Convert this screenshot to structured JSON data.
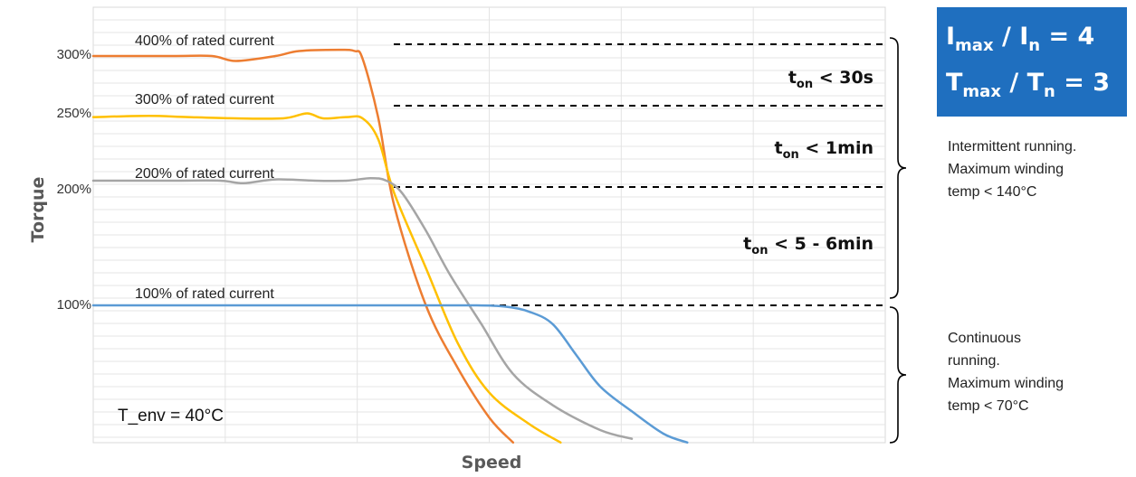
{
  "chart_data": {
    "type": "line",
    "xlabel": "Speed",
    "ylabel": "Torque",
    "yticks": [
      "300%",
      "250%",
      "200%",
      "100%"
    ],
    "grid": true,
    "series": [
      {
        "name": "400% of rated current",
        "color": "#ED7D31",
        "points": [
          [
            0,
            300
          ],
          [
            10,
            300
          ],
          [
            15,
            300
          ],
          [
            18,
            296
          ],
          [
            23,
            300
          ],
          [
            26,
            304
          ],
          [
            31,
            305
          ],
          [
            33,
            304
          ],
          [
            34,
            298
          ],
          [
            36,
            250
          ],
          [
            38,
            180
          ],
          [
            42,
            100
          ],
          [
            46,
            50
          ],
          [
            50,
            10
          ],
          [
            53,
            -10
          ]
        ]
      },
      {
        "name": "300% of rated current",
        "color": "#FFC000",
        "points": [
          [
            0,
            251
          ],
          [
            7,
            252
          ],
          [
            12,
            251
          ],
          [
            18,
            250
          ],
          [
            24,
            250
          ],
          [
            27,
            254
          ],
          [
            29,
            250
          ],
          [
            32,
            251
          ],
          [
            34,
            250
          ],
          [
            36,
            233
          ],
          [
            38,
            190
          ],
          [
            42,
            130
          ],
          [
            46,
            70
          ],
          [
            50,
            30
          ],
          [
            55,
            5
          ],
          [
            59,
            -10
          ]
        ]
      },
      {
        "name": "200% of rated current",
        "color": "#A5A5A5",
        "points": [
          [
            0,
            200
          ],
          [
            10,
            200
          ],
          [
            16,
            200
          ],
          [
            19,
            198
          ],
          [
            23,
            201
          ],
          [
            28,
            200
          ],
          [
            32,
            200
          ],
          [
            35,
            202
          ],
          [
            37,
            200
          ],
          [
            39,
            190
          ],
          [
            42,
            160
          ],
          [
            45,
            125
          ],
          [
            49,
            85
          ],
          [
            53,
            45
          ],
          [
            58,
            20
          ],
          [
            64,
            0
          ],
          [
            68,
            -7
          ]
        ]
      },
      {
        "name": "100% of rated current",
        "color": "#5B9BD5",
        "points": [
          [
            0,
            100
          ],
          [
            10,
            100
          ],
          [
            20,
            100
          ],
          [
            30,
            100
          ],
          [
            40,
            100
          ],
          [
            48,
            100
          ],
          [
            52,
            99
          ],
          [
            55,
            95
          ],
          [
            58,
            85
          ],
          [
            61,
            60
          ],
          [
            64,
            35
          ],
          [
            68,
            15
          ],
          [
            72,
            -3
          ],
          [
            75,
            -10
          ]
        ]
      }
    ],
    "thresholds": [
      {
        "label": "300%",
        "value": 305
      },
      {
        "label": "250%",
        "value": 255
      },
      {
        "label": "200%",
        "value": 200
      },
      {
        "label": "100%",
        "value": 100
      }
    ],
    "annotations": {
      "ton": [
        {
          "base": "t",
          "sub": "on",
          "rest": " < 30s"
        },
        {
          "base": "t",
          "sub": "on",
          "rest": " < 1min"
        },
        {
          "base": "t",
          "sub": "on",
          "rest": " < 5 - 6min"
        }
      ],
      "intermittent": [
        "Intermittent running.",
        "Maximum winding",
        "temp < 140°C"
      ],
      "continuous": [
        "Continuous",
        "running.",
        "Maximum winding",
        "temp < 70°C"
      ],
      "env": "T_env = 40°C",
      "ratio": [
        {
          "a": "I",
          "a_sub": "max",
          "b": "I",
          "b_sub": "n",
          "value": "4"
        },
        {
          "a": "T",
          "a_sub": "max",
          "b": "T",
          "b_sub": "n",
          "value": "3"
        }
      ],
      "ratio_box_color": "#1F6FBF"
    }
  }
}
